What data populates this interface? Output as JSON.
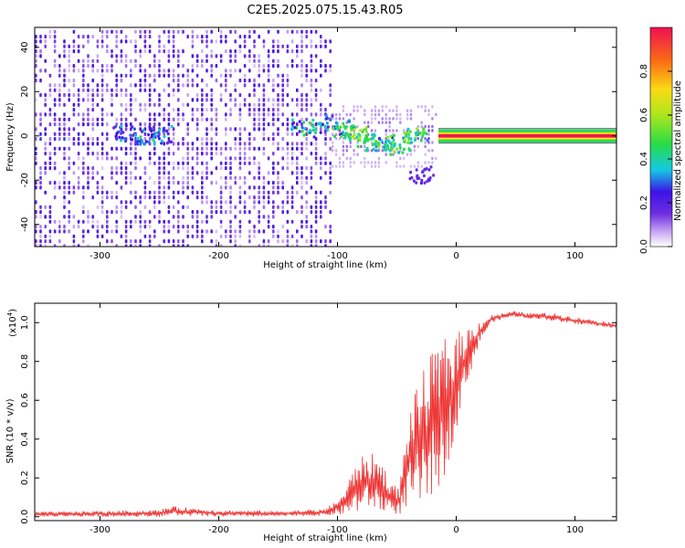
{
  "title": "C2E5.2025.075.15.43.R05",
  "chart_data": [
    {
      "type": "heatmap",
      "title": "",
      "xlabel": "Height of straight line (km)",
      "ylabel": "Frequency (Hz)",
      "xlim": [
        -355,
        135
      ],
      "ylim": [
        -50,
        49
      ],
      "xticks": [
        -300,
        -200,
        -100,
        0,
        100
      ],
      "xtick_labels": [
        "-300",
        "-200",
        "-100",
        "0",
        "100"
      ],
      "yticks": [
        -40,
        -20,
        0,
        20,
        40
      ],
      "ytick_labels": [
        "-40",
        "-20",
        "0",
        "20",
        "40"
      ],
      "colorbar": {
        "label": "Normalized spectral amplitude",
        "range": [
          0,
          1
        ],
        "ticks": [
          0.0,
          0.2,
          0.4,
          0.6,
          0.8
        ],
        "tick_labels": [
          "0.0",
          "0.2",
          "0.4",
          "0.6",
          "0.8"
        ],
        "colormap": "rainbow"
      },
      "features": {
        "noise_region_x": [
          -355,
          -105
        ],
        "sparse_region_x": [
          -105,
          -15
        ],
        "constant_tone_x": [
          -15,
          135
        ],
        "tone_frequency_hz": 0,
        "tone_bandwidth_hz": 3,
        "blobs": [
          {
            "x": -280,
            "f": 2,
            "amp": 0.35
          },
          {
            "x": -262,
            "f": 0,
            "amp": 0.45
          },
          {
            "x": -250,
            "f": 1,
            "amp": 0.4
          },
          {
            "x": -130,
            "f": 4,
            "amp": 0.5
          },
          {
            "x": -110,
            "f": 6,
            "amp": 0.45
          },
          {
            "x": -95,
            "f": 4,
            "amp": 0.55
          },
          {
            "x": -85,
            "f": 1,
            "amp": 0.65
          },
          {
            "x": -75,
            "f": -2,
            "amp": 0.6
          },
          {
            "x": -62,
            "f": -4,
            "amp": 0.55
          },
          {
            "x": -50,
            "f": -3,
            "amp": 0.6
          },
          {
            "x": -35,
            "f": 0,
            "amp": 0.6
          },
          {
            "x": -30,
            "f": -17,
            "amp": 0.25
          }
        ]
      }
    },
    {
      "type": "line",
      "title": "",
      "xlabel": "Height of straight line (km)",
      "ylabel": "SNR (10 * v/v)",
      "y_scale_label": "(x10",
      "y_scale_exp": "4",
      "xlim": [
        -355,
        135
      ],
      "ylim": [
        -0.02,
        1.1
      ],
      "xticks": [
        -300,
        -200,
        -100,
        0,
        100
      ],
      "xtick_labels": [
        "-300",
        "-200",
        "-100",
        "0",
        "100"
      ],
      "yticks": [
        0.0,
        0.2,
        0.4,
        0.6,
        0.8,
        1.0
      ],
      "ytick_labels": [
        "0.0",
        "0.2",
        "0.4",
        "0.6",
        "0.8",
        "1.0"
      ],
      "series": [
        {
          "name": "SNR",
          "color": "#ee3333",
          "envelope_x": [
            -355,
            -300,
            -250,
            -240,
            -200,
            -150,
            -110,
            -95,
            -82,
            -75,
            -70,
            -62,
            -55,
            -48,
            -40,
            -30,
            -20,
            -10,
            0,
            10,
            20,
            30,
            40,
            50,
            60,
            70,
            80,
            90,
            100,
            110,
            120,
            135
          ],
          "envelope_upper": [
            0.025,
            0.03,
            0.035,
            0.055,
            0.035,
            0.03,
            0.04,
            0.12,
            0.32,
            0.3,
            0.33,
            0.28,
            0.18,
            0.15,
            0.55,
            0.72,
            0.85,
            0.92,
            0.95,
            0.98,
            1.01,
            1.04,
            1.05,
            1.06,
            1.05,
            1.05,
            1.05,
            1.04,
            1.03,
            1.02,
            1.01,
            1.0
          ],
          "envelope_lower": [
            0.0,
            0.0,
            0.0,
            0.005,
            0.0,
            0.0,
            0.005,
            0.01,
            0.02,
            0.05,
            0.03,
            0.02,
            0.02,
            0.01,
            0.04,
            0.05,
            0.1,
            0.2,
            0.45,
            0.7,
            0.9,
            1.0,
            1.02,
            1.03,
            1.02,
            1.02,
            1.01,
            1.0,
            0.99,
            0.99,
            0.98,
            0.97
          ]
        }
      ]
    }
  ]
}
